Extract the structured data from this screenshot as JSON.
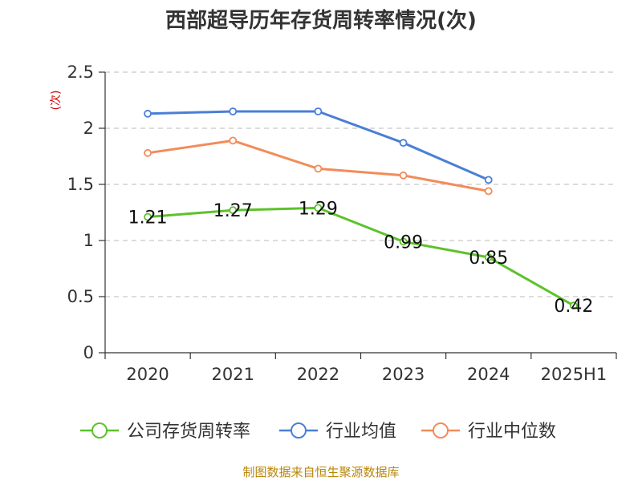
{
  "chart_data": {
    "type": "line",
    "title": "西部超导历年存货周转率情况(次)",
    "ylabel": "(次)",
    "xlabel": "",
    "categories": [
      "2020",
      "2021",
      "2022",
      "2023",
      "2024",
      "2025H1"
    ],
    "ylim": [
      0,
      2.5
    ],
    "yticks": [
      "0",
      "0.5",
      "1",
      "1.5",
      "2",
      "2.5"
    ],
    "grid": true,
    "legend_position": "bottom",
    "series": [
      {
        "name": "公司存货周转率",
        "color": "#5cc22b",
        "values": [
          1.21,
          1.27,
          1.29,
          0.99,
          0.85,
          0.42
        ],
        "labels": [
          "1.21",
          "1.27",
          "1.29",
          "0.99",
          "0.85",
          "0.42"
        ]
      },
      {
        "name": "行业均值",
        "color": "#4a7fd6",
        "values": [
          2.13,
          2.15,
          2.15,
          1.87,
          1.54,
          null
        ]
      },
      {
        "name": "行业中位数",
        "color": "#f28c5a",
        "values": [
          1.78,
          1.89,
          1.64,
          1.58,
          1.44,
          null
        ]
      }
    ],
    "source": "制图数据来自恒生聚源数据库"
  }
}
